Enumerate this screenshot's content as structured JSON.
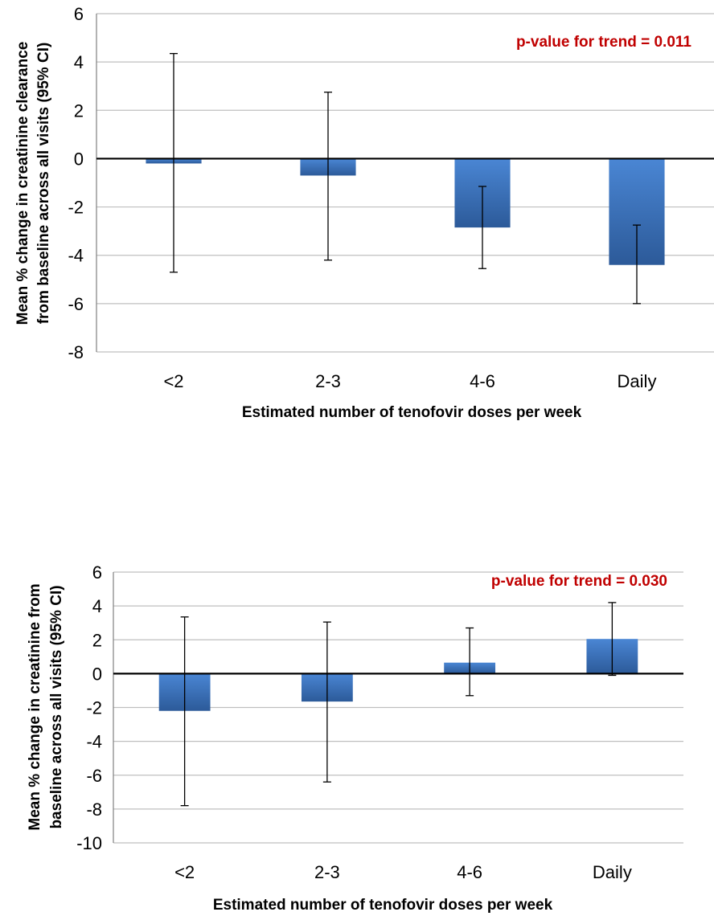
{
  "chart_data": [
    {
      "type": "bar",
      "categories": [
        "<2",
        "2-3",
        "4-6",
        "Daily"
      ],
      "values": [
        -0.2,
        -0.7,
        -2.85,
        -4.4
      ],
      "error_bars": {
        "lower": [
          -4.7,
          -4.2,
          -4.55,
          -6.0
        ],
        "upper": [
          4.35,
          2.75,
          -1.15,
          -2.75
        ]
      },
      "title": "",
      "xlabel": "Estimated number of tenofovir doses per week",
      "ylabel_lines": [
        "Mean % change in creatinine clearance",
        "from baseline across all visits (95% CI)"
      ],
      "ylim": [
        -8,
        6
      ],
      "yticks": [
        6,
        4,
        2,
        0,
        -2,
        -4,
        -6,
        -8
      ],
      "ytick_labels": [
        "6",
        "4",
        "2",
        "0",
        "-2",
        "-4",
        "-6",
        "-8"
      ],
      "grid": true,
      "annotation": "p-value for trend = 0.011",
      "colors": {
        "bar": "#3f76c2",
        "bar_dark": "#2c5a99",
        "annotation": "#c00000",
        "grid": "#bfbfbf"
      }
    },
    {
      "type": "bar",
      "categories": [
        "<2",
        "2-3",
        "4-6",
        "Daily"
      ],
      "values": [
        -2.2,
        -1.65,
        0.65,
        2.05
      ],
      "error_bars": {
        "lower": [
          -7.8,
          -6.4,
          -1.3,
          -0.1
        ],
        "upper": [
          3.35,
          3.05,
          2.7,
          4.2
        ]
      },
      "title": "",
      "xlabel": "Estimated number of tenofovir doses per week",
      "ylabel_lines": [
        "Mean % change in creatinine from",
        "baseline across all visits (95% CI)"
      ],
      "ylim": [
        -10,
        6
      ],
      "yticks": [
        6,
        4,
        2,
        0,
        -2,
        -4,
        -6,
        -8,
        -10
      ],
      "ytick_labels": [
        "6",
        "4",
        "2",
        "0",
        "-2",
        "-4",
        "-6",
        "-8",
        "-10"
      ],
      "grid": true,
      "annotation": "p-value for trend = 0.030",
      "colors": {
        "bar": "#3f76c2",
        "bar_dark": "#2c5a99",
        "annotation": "#c00000",
        "grid": "#bfbfbf"
      }
    }
  ]
}
